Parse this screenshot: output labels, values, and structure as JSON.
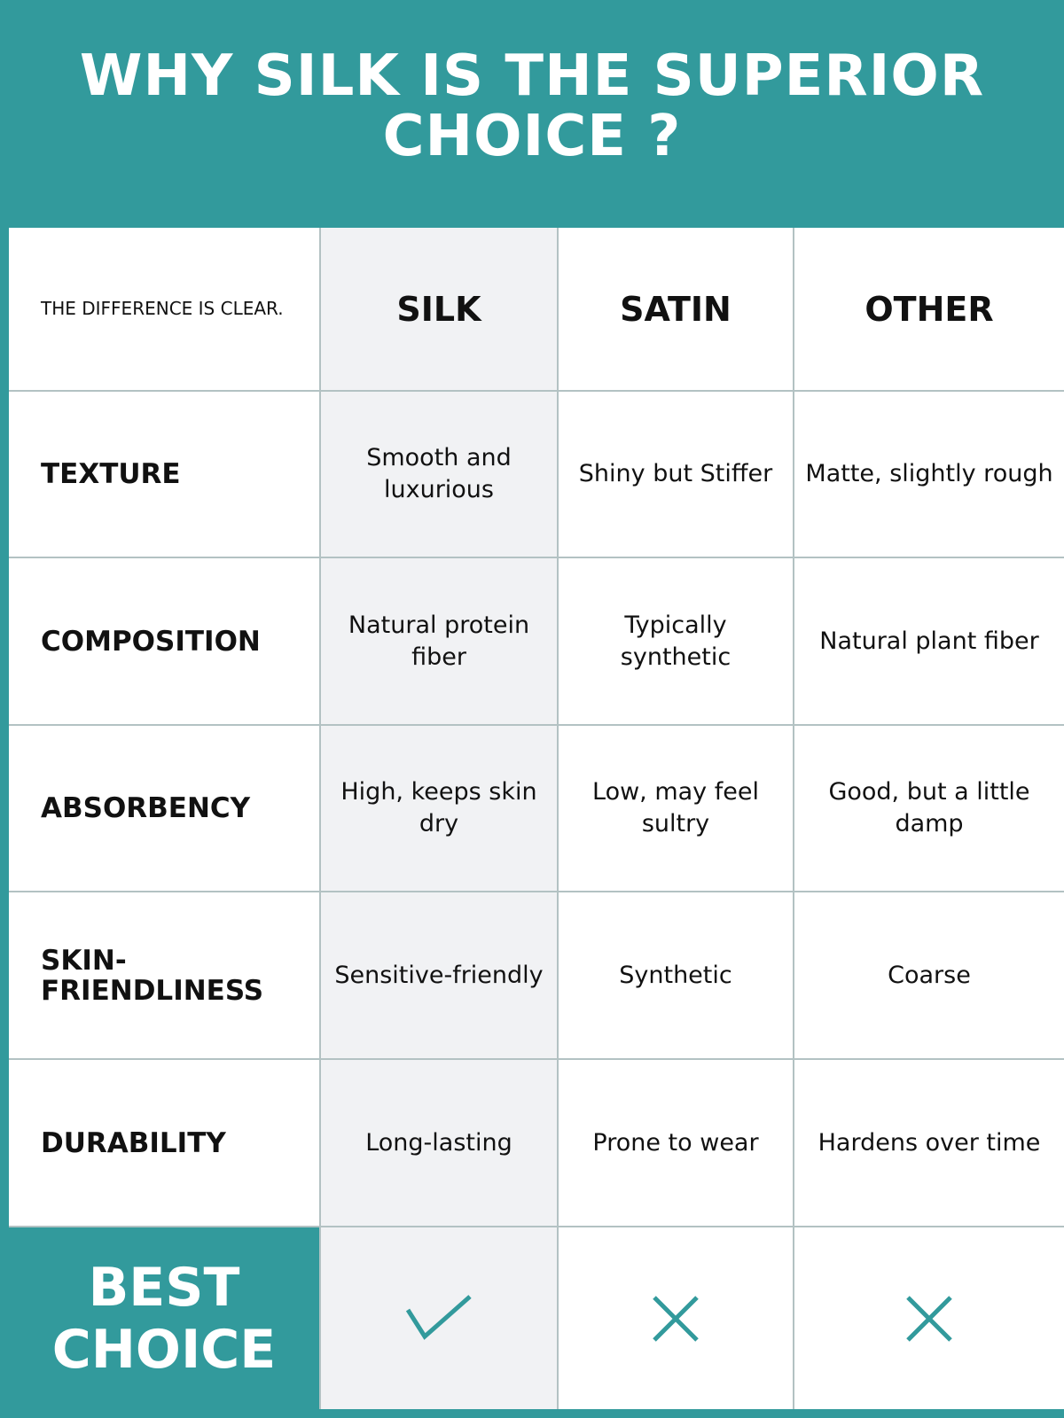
{
  "title": "WHY SILK IS THE SUPERIOR CHOICE ?",
  "accent_color": "#329a9c",
  "intro": "THE DIFFERENCE IS CLEAR.",
  "columns": [
    "SILK",
    "SATIN",
    "OTHER"
  ],
  "rows": [
    {
      "label": "TEXTURE",
      "values": [
        "Smooth and luxurious",
        "Shiny but Stiffer",
        "Matte, slightly rough"
      ]
    },
    {
      "label": "COMPOSITION",
      "values": [
        "Natural protein fiber",
        "Typically synthetic",
        "Natural plant fiber"
      ]
    },
    {
      "label": "ABSORBENCY",
      "values": [
        "High, keeps skin dry",
        "Low, may feel sultry",
        "Good, but a little damp"
      ]
    },
    {
      "label": "SKIN-FRIENDLINESS",
      "values": [
        "Sensitive-friendly",
        "Synthetic",
        "Coarse"
      ]
    },
    {
      "label": "DURABILITY",
      "values": [
        "Long-lasting",
        "Prone to wear",
        "Hardens over time"
      ]
    }
  ],
  "best_choice": {
    "label": "BEST CHOICE",
    "marks": [
      "check-icon",
      "x-icon",
      "x-icon"
    ]
  }
}
